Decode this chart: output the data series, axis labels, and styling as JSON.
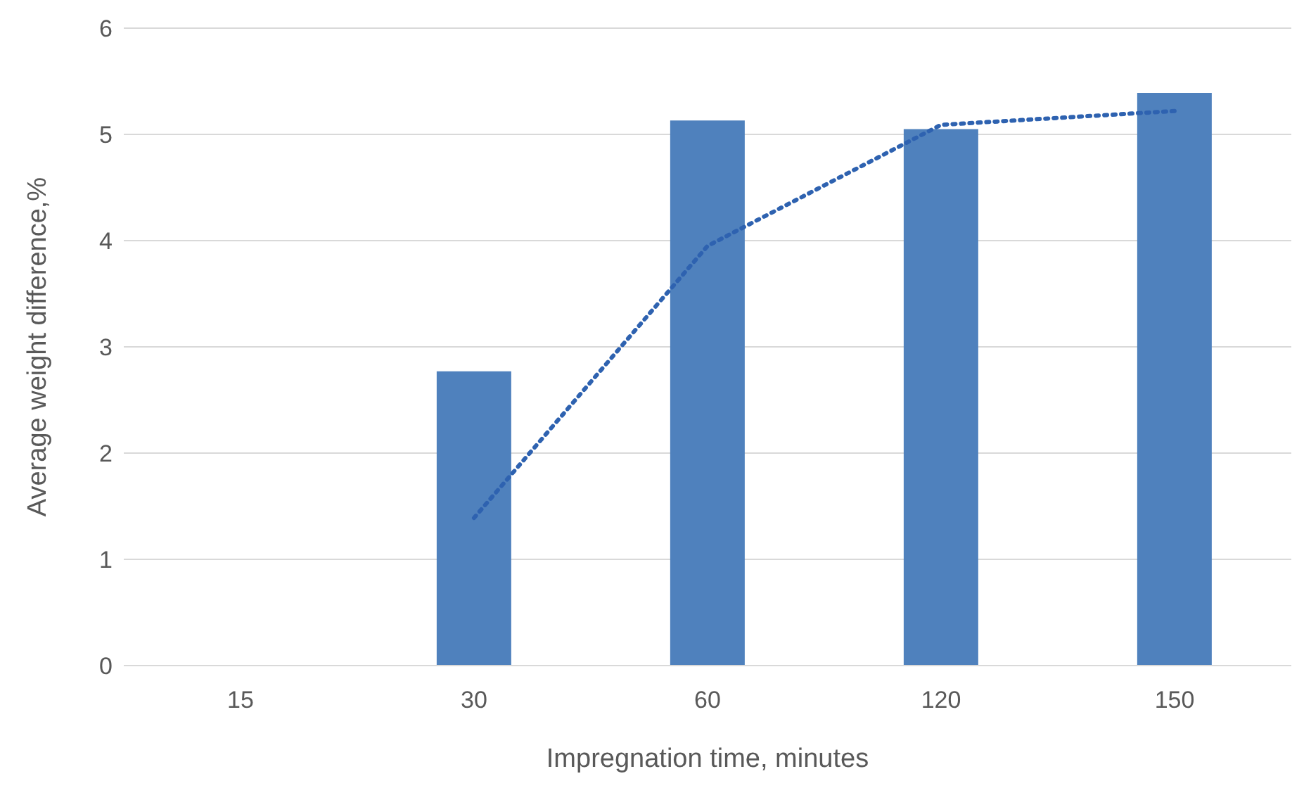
{
  "chart_data": {
    "type": "bar",
    "xlabel": "Impregnation time, minutes",
    "ylabel": "Average weight difference,%",
    "categories": [
      "15",
      "30",
      "60",
      "120",
      "150"
    ],
    "series": [
      {
        "color": "#4f81bd",
        "values": [
          null,
          2.77,
          5.13,
          5.05,
          5.39
        ]
      },
      {
        "type": "line",
        "color": "#2e62b0",
        "line_style": "dotted",
        "marker": "none",
        "values": [
          null,
          1.39,
          3.95,
          5.09,
          5.22
        ]
      }
    ],
    "ylim": [
      0,
      6
    ],
    "yticks": [
      0,
      1,
      2,
      3,
      4,
      5,
      6
    ],
    "grid": "y",
    "legend": false
  }
}
